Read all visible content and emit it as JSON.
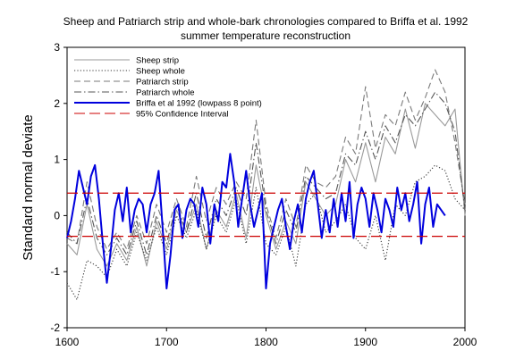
{
  "chart_data": {
    "type": "line",
    "title_lines": [
      "Sheep and Patriarch strip and whole-bark chronologies compared to Briffa et al. 1992",
      "summer temperature reconstruction"
    ],
    "xlabel": "",
    "ylabel": "Standard normal deviate",
    "xlim": [
      1600,
      2000
    ],
    "ylim": [
      -2,
      3
    ],
    "xticks": [
      "1600",
      "1700",
      "1800",
      "1900",
      "2000"
    ],
    "yticks": [
      "-2",
      "-1",
      "0",
      "1",
      "2",
      "3"
    ],
    "grid": false,
    "legend_position": "top-left",
    "series": [
      {
        "name": "Sheep strip",
        "color": "#9a9a9a",
        "dash": "solid",
        "x": [
          1600,
          1610,
          1620,
          1630,
          1640,
          1650,
          1660,
          1670,
          1680,
          1690,
          1700,
          1710,
          1720,
          1730,
          1740,
          1750,
          1760,
          1770,
          1780,
          1790,
          1800,
          1810,
          1820,
          1830,
          1840,
          1850,
          1860,
          1870,
          1880,
          1890,
          1900,
          1910,
          1920,
          1930,
          1940,
          1950,
          1960,
          1970,
          1980,
          1990,
          2000
        ],
        "y": [
          -0.5,
          -0.7,
          0.2,
          -0.6,
          -0.9,
          -0.5,
          -0.8,
          -0.2,
          -0.9,
          -0.1,
          -0.6,
          0.1,
          -0.3,
          0.2,
          -0.6,
          0.1,
          -0.2,
          0.4,
          -0.4,
          0.9,
          0.0,
          -0.6,
          -0.1,
          -0.5,
          0.6,
          0.3,
          0.0,
          0.2,
          1.0,
          0.6,
          1.3,
          0.6,
          1.4,
          1.1,
          1.9,
          1.2,
          2.0,
          1.8,
          1.6,
          1.9,
          0.0
        ]
      },
      {
        "name": "Sheep whole",
        "color": "#333333",
        "dash": "dotted",
        "x": [
          1600,
          1610,
          1620,
          1630,
          1640,
          1650,
          1660,
          1670,
          1680,
          1690,
          1700,
          1710,
          1720,
          1730,
          1740,
          1750,
          1760,
          1770,
          1780,
          1790,
          1800,
          1810,
          1820,
          1830,
          1840,
          1850,
          1860,
          1870,
          1880,
          1890,
          1900,
          1910,
          1920,
          1930,
          1940,
          1950,
          1960,
          1970,
          1980,
          1990,
          2000
        ],
        "y": [
          -1.2,
          -1.5,
          -0.8,
          -0.9,
          -1.1,
          -0.6,
          -0.9,
          -0.3,
          -0.8,
          -0.2,
          -0.7,
          0.0,
          -0.4,
          0.1,
          -0.6,
          0.0,
          -0.3,
          0.3,
          -0.5,
          0.5,
          -0.5,
          -0.7,
          -0.2,
          -0.9,
          0.2,
          0.4,
          -0.3,
          -0.1,
          0.2,
          -0.4,
          -0.6,
          0.0,
          -0.8,
          0.2,
          0.0,
          0.6,
          0.7,
          0.9,
          0.8,
          0.3,
          0.1
        ]
      },
      {
        "name": "Patriarch strip",
        "color": "#7a7a7a",
        "dash": "dashed",
        "x": [
          1600,
          1610,
          1620,
          1630,
          1640,
          1650,
          1660,
          1670,
          1680,
          1690,
          1700,
          1710,
          1720,
          1730,
          1740,
          1750,
          1760,
          1770,
          1780,
          1790,
          1800,
          1810,
          1820,
          1830,
          1840,
          1850,
          1860,
          1870,
          1880,
          1890,
          1900,
          1910,
          1920,
          1930,
          1940,
          1950,
          1960,
          1970,
          1980,
          1990,
          2000
        ],
        "y": [
          -0.4,
          -0.5,
          0.6,
          -0.2,
          -0.6,
          -0.3,
          -0.6,
          0.0,
          -0.5,
          0.2,
          -0.3,
          0.3,
          -0.2,
          0.7,
          -0.1,
          0.5,
          0.2,
          0.6,
          0.3,
          1.7,
          0.2,
          -0.4,
          0.3,
          -0.2,
          0.9,
          0.6,
          0.5,
          0.7,
          1.4,
          1.1,
          2.3,
          1.2,
          1.8,
          1.6,
          2.2,
          1.7,
          2.1,
          2.6,
          2.2,
          1.3,
          0.2
        ]
      },
      {
        "name": "Patriarch whole",
        "color": "#555555",
        "dash": "dashdot",
        "x": [
          1600,
          1610,
          1620,
          1630,
          1640,
          1650,
          1660,
          1670,
          1680,
          1690,
          1700,
          1710,
          1720,
          1730,
          1740,
          1750,
          1760,
          1770,
          1780,
          1790,
          1800,
          1810,
          1820,
          1830,
          1840,
          1850,
          1860,
          1870,
          1880,
          1890,
          1900,
          1910,
          1920,
          1930,
          1940,
          1950,
          1960,
          1970,
          1980,
          1990,
          2000
        ],
        "y": [
          -0.3,
          -0.5,
          0.3,
          -0.4,
          -0.7,
          -0.4,
          -0.7,
          -0.1,
          -0.7,
          0.0,
          -0.5,
          0.2,
          -0.3,
          0.4,
          -0.4,
          0.3,
          0.0,
          0.5,
          0.0,
          1.3,
          0.1,
          -0.5,
          0.1,
          -0.3,
          0.7,
          0.5,
          0.3,
          0.4,
          1.1,
          0.9,
          1.5,
          1.0,
          1.6,
          1.3,
          1.8,
          1.6,
          1.9,
          2.2,
          2.0,
          1.5,
          0.1
        ]
      },
      {
        "name": "Briffa et al 1992 (lowpass 8 point)",
        "color": "#0000dd",
        "dash": "solid",
        "x": [
          1600,
          1604,
          1608,
          1612,
          1616,
          1620,
          1624,
          1628,
          1632,
          1636,
          1640,
          1644,
          1648,
          1652,
          1656,
          1660,
          1664,
          1668,
          1672,
          1676,
          1680,
          1684,
          1688,
          1692,
          1696,
          1700,
          1704,
          1708,
          1712,
          1716,
          1720,
          1724,
          1728,
          1732,
          1736,
          1740,
          1744,
          1748,
          1752,
          1756,
          1760,
          1764,
          1768,
          1772,
          1776,
          1780,
          1784,
          1788,
          1792,
          1796,
          1800,
          1804,
          1808,
          1812,
          1816,
          1820,
          1824,
          1828,
          1832,
          1836,
          1840,
          1844,
          1848,
          1852,
          1856,
          1860,
          1864,
          1868,
          1872,
          1876,
          1880,
          1884,
          1888,
          1892,
          1896,
          1900,
          1904,
          1908,
          1912,
          1916,
          1920,
          1924,
          1928,
          1932,
          1936,
          1940,
          1944,
          1948,
          1952,
          1956,
          1960,
          1964,
          1968,
          1972,
          1976,
          1980
        ],
        "y": [
          -0.4,
          -0.1,
          0.3,
          0.8,
          0.5,
          0.2,
          0.7,
          0.9,
          0.3,
          -0.5,
          -1.2,
          -0.6,
          0.1,
          0.4,
          -0.1,
          0.5,
          -0.3,
          0.1,
          0.3,
          0.2,
          -0.3,
          0.2,
          0.4,
          0.8,
          -0.2,
          -1.3,
          -0.7,
          0.1,
          0.2,
          -0.4,
          0.1,
          0.3,
          0.2,
          -0.2,
          0.5,
          0.2,
          -0.5,
          0.2,
          -0.1,
          0.6,
          0.5,
          1.1,
          0.6,
          -0.2,
          0.3,
          0.8,
          0.2,
          -0.2,
          0.1,
          0.4,
          -1.3,
          -0.5,
          -0.2,
          0.1,
          0.3,
          -0.2,
          -0.6,
          -0.1,
          0.2,
          -0.3,
          0.3,
          0.6,
          0.8,
          0.2,
          -0.4,
          0.1,
          -0.3,
          0.3,
          -0.2,
          0.4,
          -0.1,
          0.6,
          -0.4,
          0.2,
          0.5,
          0.3,
          -0.2,
          0.4,
          0.1,
          -0.3,
          0.3,
          0.1,
          -0.2,
          0.5,
          0.1,
          0.4,
          -0.1,
          0.2,
          0.6,
          -0.5,
          0.2,
          0.5,
          -0.2,
          0.2,
          0.1,
          0.0
        ]
      },
      {
        "name": "95% Confidence Interval",
        "color": "#cc0000",
        "dash": "longdash",
        "bands": [
          0.4,
          -0.37
        ]
      }
    ]
  }
}
